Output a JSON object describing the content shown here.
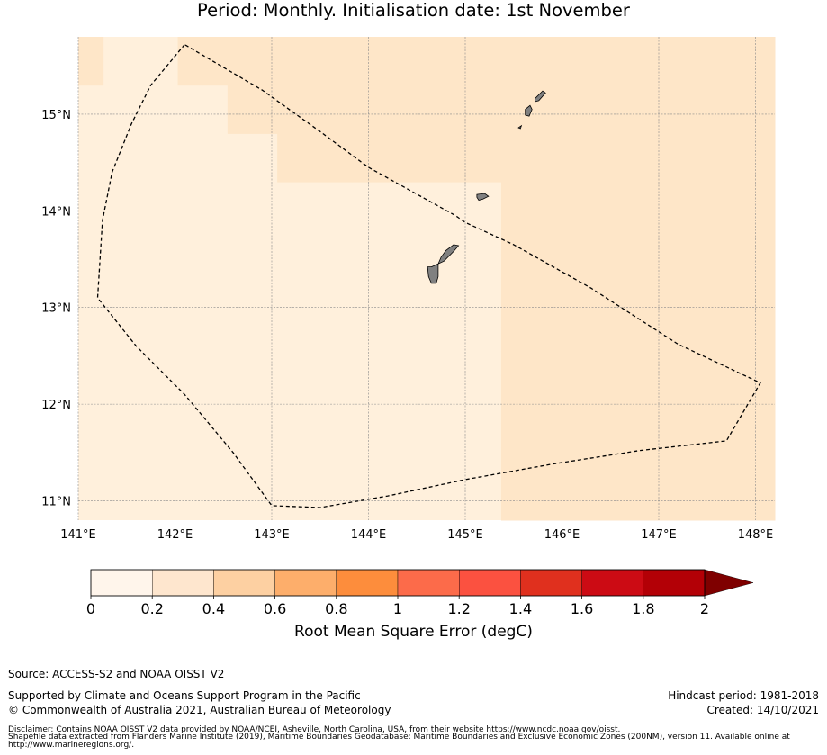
{
  "title": "Period: Monthly. Initialisation date: 1st November",
  "map": {
    "lon_min": 141.0,
    "lon_max": 148.2,
    "lat_min": 10.8,
    "lat_max": 15.8,
    "x_ticks": [
      141,
      142,
      143,
      144,
      145,
      146,
      147,
      148
    ],
    "x_tick_labels": [
      "141°E",
      "142°E",
      "143°E",
      "144°E",
      "145°E",
      "146°E",
      "147°E",
      "148°E"
    ],
    "y_ticks": [
      11,
      12,
      13,
      14,
      15
    ],
    "y_tick_labels": [
      "11°N",
      "12°N",
      "13°N",
      "14°N",
      "15°N"
    ],
    "grid_step": 0.25,
    "grid_rows": [
      "1000111111111111111111111111",
      "1000111111111111111111111111",
      "0000001111111111111111111111",
      "0000001111111111111111111111",
      "0000000011111111111111111111",
      "0000000011111111111111111111",
      "0000000000000000011111111111",
      "0000000000000000011111111111",
      "0000000000000000011111111111",
      "0000000000000000011111111111",
      "0000000000000000011111111111",
      "0000000000000000011111111111",
      "0000000000000000011111111111",
      "0000000000000000011111111111",
      "0000000000000000011111111111",
      "0000000000000000011111111111",
      "0000000000000000011111111111",
      "0000000000000000011111111111",
      "0000000000000000011111111111",
      "0000000000000000011111111111"
    ],
    "boundary": [
      [
        142.1,
        15.72
      ],
      [
        141.75,
        15.3
      ],
      [
        141.55,
        14.9
      ],
      [
        141.35,
        14.4
      ],
      [
        141.25,
        13.9
      ],
      [
        141.2,
        13.1
      ],
      [
        141.6,
        12.6
      ],
      [
        142.1,
        12.1
      ],
      [
        142.6,
        11.5
      ],
      [
        143.0,
        10.95
      ],
      [
        143.5,
        10.93
      ],
      [
        144.2,
        11.05
      ],
      [
        145.0,
        11.22
      ],
      [
        145.9,
        11.38
      ],
      [
        146.8,
        11.52
      ],
      [
        147.7,
        11.62
      ],
      [
        148.05,
        12.22
      ],
      [
        147.2,
        12.62
      ],
      [
        146.3,
        13.2
      ],
      [
        145.5,
        13.65
      ],
      [
        145.0,
        13.88
      ],
      [
        144.9,
        13.95
      ],
      [
        144.0,
        14.45
      ],
      [
        143.5,
        14.82
      ],
      [
        142.9,
        15.25
      ],
      [
        142.1,
        15.72
      ]
    ],
    "islands": [
      [
        [
          144.65,
          13.42
        ],
        [
          144.78,
          13.48
        ],
        [
          144.88,
          13.58
        ],
        [
          144.93,
          13.64
        ],
        [
          144.88,
          13.65
        ],
        [
          144.8,
          13.59
        ],
        [
          144.75,
          13.52
        ],
        [
          144.72,
          13.45
        ],
        [
          144.72,
          13.32
        ],
        [
          144.7,
          13.25
        ],
        [
          144.65,
          13.25
        ],
        [
          144.62,
          13.32
        ],
        [
          144.61,
          13.42
        ]
      ],
      [
        [
          145.12,
          14.17
        ],
        [
          145.2,
          14.18
        ],
        [
          145.24,
          14.15
        ],
        [
          145.18,
          14.12
        ],
        [
          145.14,
          14.11
        ],
        [
          145.12,
          14.14
        ]
      ],
      [
        [
          145.62,
          15.05
        ],
        [
          145.67,
          15.09
        ],
        [
          145.69,
          15.05
        ],
        [
          145.66,
          14.98
        ],
        [
          145.62,
          14.99
        ]
      ],
      [
        [
          145.72,
          15.16
        ],
        [
          145.8,
          15.24
        ],
        [
          145.83,
          15.22
        ],
        [
          145.76,
          15.14
        ],
        [
          145.72,
          15.13
        ]
      ],
      [
        [
          145.55,
          14.86
        ],
        [
          145.58,
          14.88
        ],
        [
          145.57,
          14.85
        ]
      ]
    ]
  },
  "colorbar": {
    "bounds": [
      0,
      0.2,
      0.4,
      0.6,
      0.8,
      1,
      1.2,
      1.4,
      1.6,
      1.8,
      2
    ],
    "tick_labels": [
      "0",
      "0.2",
      "0.4",
      "0.6",
      "0.8",
      "1",
      "1.2",
      "1.4",
      "1.6",
      "1.8",
      "2"
    ],
    "colors": [
      "#fff5eb",
      "#fee6ce",
      "#fdd0a2",
      "#fdae6b",
      "#fd8d3c",
      "#fc6b4a",
      "#fb5140",
      "#e0301e",
      "#cc0b14",
      "#b30006"
    ],
    "extend_color": "#7f0000",
    "label": "Root Mean Square Error (degC)"
  },
  "footer": {
    "source": "Source: ACCESS-S2 and NOAA OISST V2",
    "support_line1": "Supported by Climate and Oceans Support Program in the Pacific",
    "support_line2": "© Commonwealth of Australia 2021, Australian Bureau of Meteorology",
    "hindcast": "Hindcast period: 1981-2018",
    "created": "Created: 14/10/2021",
    "disclaimer1": "Disclaimer: Contains NOAA OISST V2 data provided by NOAA/NCEI, Asheville, North Carolina, USA, from their website https://www.ncdc.noaa.gov/oisst.",
    "disclaimer2": "Shapefile data extracted from Flanders Marine Institute (2019), Maritime Boundaries Geodatabase: Maritime Boundaries and Exclusive Economic Zones (200NM), version 11. Available online at",
    "disclaimer3": "http://www.marineregions.org/."
  },
  "colors": {
    "light": "#fff0dc",
    "medium": "#fee6c8",
    "land": "#808080",
    "grid": "#8a8a8a"
  }
}
